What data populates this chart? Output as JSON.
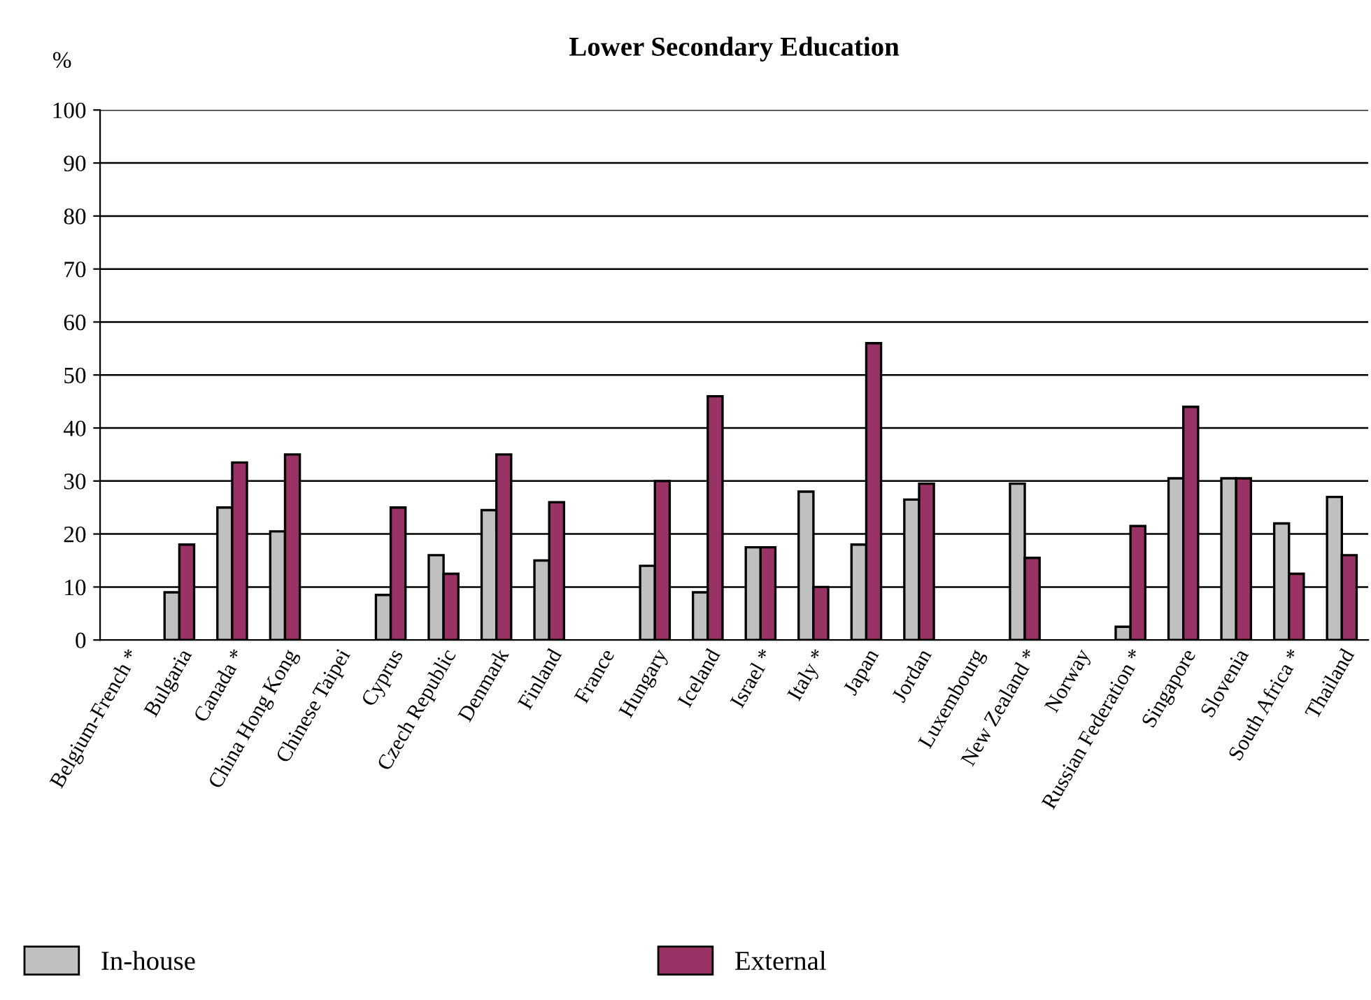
{
  "chart_data": {
    "type": "bar",
    "title": "Lower Secondary Education",
    "ylabel": "%",
    "categories": [
      "Belgium-French *",
      "Bulgaria",
      "Canada *",
      "China Hong Kong",
      "Chinese Taipei",
      "Cyprus",
      "Czech Republic",
      "Denmark",
      "Finland",
      "France",
      "Hungary",
      "Iceland",
      "Israel *",
      "Italy *",
      "Japan",
      "Jordan",
      "Luxembourg",
      "New Zealand *",
      "Norway",
      "Russian Federation *",
      "Singapore",
      "Slovenia",
      "South Africa *",
      "Thailand"
    ],
    "series": [
      {
        "name": "In-house",
        "color": "#c0c0c0",
        "values": [
          null,
          9,
          25,
          20.5,
          null,
          8.5,
          16,
          24.5,
          15,
          null,
          14,
          9,
          17.5,
          28,
          18,
          26.5,
          null,
          29.5,
          null,
          2.5,
          30.5,
          30.5,
          22,
          27
        ]
      },
      {
        "name": "External",
        "color": "#993366",
        "values": [
          null,
          18,
          33.5,
          35,
          null,
          25,
          12.5,
          35,
          26,
          null,
          30,
          46,
          17.5,
          10,
          56,
          29.5,
          null,
          15.5,
          null,
          21.5,
          44,
          30.5,
          12.5,
          16
        ]
      }
    ],
    "ylim": [
      0,
      100
    ],
    "yticks": [
      0,
      10,
      20,
      30,
      40,
      50,
      60,
      70,
      80,
      90,
      100
    ],
    "grid": "y",
    "legend": "bottom"
  }
}
